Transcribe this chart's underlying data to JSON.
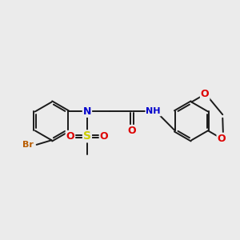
{
  "bg_color": "#ebebeb",
  "bond_color": "#1a1a1a",
  "bond_width": 1.4,
  "atom_colors": {
    "Br": "#b85c00",
    "N": "#0000cc",
    "NH": "#0000cc",
    "O": "#dd0000",
    "S": "#cccc00",
    "C": "#1a1a1a"
  },
  "atom_fontsizes": {
    "Br": 8,
    "N": 9,
    "NH": 8,
    "O": 9,
    "S": 10,
    "C": 8
  }
}
